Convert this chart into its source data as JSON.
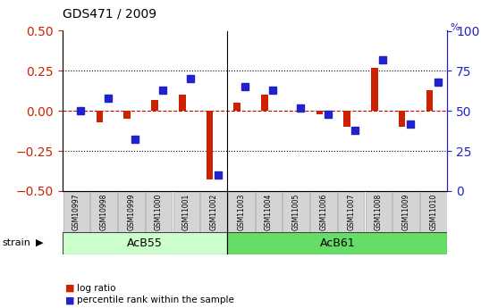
{
  "title": "GDS471 / 2009",
  "samples": [
    "GSM10997",
    "GSM10998",
    "GSM10999",
    "GSM11000",
    "GSM11001",
    "GSM11002",
    "GSM11003",
    "GSM11004",
    "GSM11005",
    "GSM11006",
    "GSM11007",
    "GSM11008",
    "GSM11009",
    "GSM11010"
  ],
  "log_ratio": [
    0.0,
    -0.07,
    -0.05,
    0.07,
    0.1,
    -0.43,
    0.05,
    0.1,
    0.0,
    -0.02,
    -0.1,
    0.27,
    -0.1,
    0.13
  ],
  "percentile_rank": [
    50,
    58,
    32,
    63,
    70,
    10,
    65,
    63,
    52,
    48,
    38,
    82,
    42,
    68
  ],
  "groups": [
    {
      "label": "AcB55",
      "start": 0,
      "end": 5,
      "color": "#ccffcc"
    },
    {
      "label": "AcB61",
      "start": 6,
      "end": 13,
      "color": "#66dd66"
    }
  ],
  "bar_color_red": "#cc2200",
  "bar_color_blue": "#2222cc",
  "dotted_line_color": "#cc0000",
  "left_ylim": [
    -0.5,
    0.5
  ],
  "right_ylim": [
    0,
    100
  ],
  "left_yticks": [
    -0.5,
    -0.25,
    0.0,
    0.25,
    0.5
  ],
  "right_yticks": [
    0,
    25,
    50,
    75,
    100
  ],
  "hline_y_left": [
    0.25,
    -0.25
  ],
  "bg_color": "#ffffff",
  "strain_label": "strain",
  "legend_items": [
    "log ratio",
    "percentile rank within the sample"
  ]
}
